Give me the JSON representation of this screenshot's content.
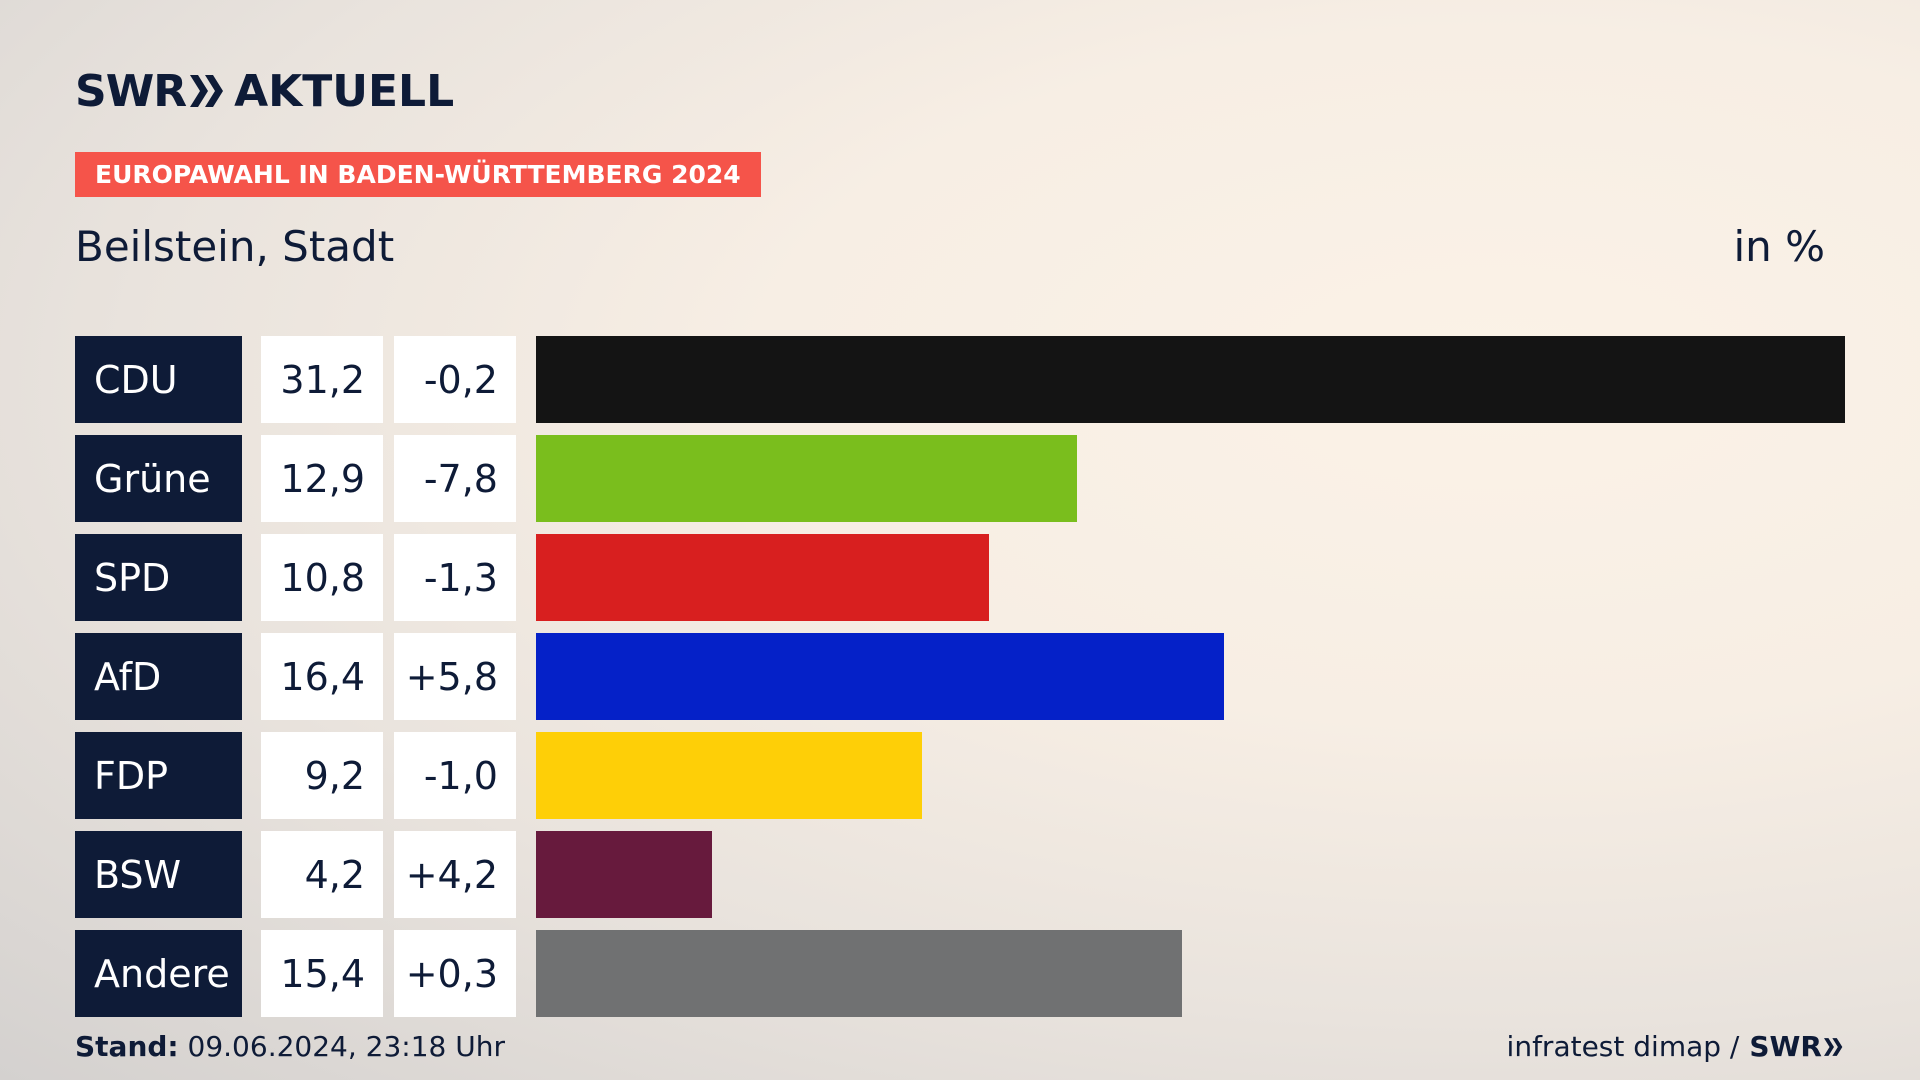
{
  "header": {
    "logo_brand": "SWR",
    "logo_product": "AKTUELL",
    "badge": "EUROPAWAHL IN BADEN-WÜRTTEMBERG 2024",
    "location": "Beilstein, Stadt",
    "unit": "in %"
  },
  "chart_data": {
    "type": "bar",
    "orientation": "horizontal",
    "title": "Beilstein, Stadt",
    "unit": "in %",
    "categories": [
      "CDU",
      "Grüne",
      "SPD",
      "AfD",
      "FDP",
      "BSW",
      "Andere"
    ],
    "values": [
      31.2,
      12.9,
      10.8,
      16.4,
      9.2,
      4.2,
      15.4
    ],
    "value_labels": [
      "31,2",
      "12,9",
      "10,8",
      "16,4",
      "9,2",
      "4,2",
      "15,4"
    ],
    "diff_labels": [
      "-0,2",
      "-7,8",
      "-1,3",
      "+5,8",
      "-1,0",
      "+4,2",
      "+0,3"
    ],
    "diffs": [
      -0.2,
      -7.8,
      -1.3,
      5.8,
      -1.0,
      4.2,
      0.3
    ],
    "colors": [
      "#141414",
      "#7abe1d",
      "#d81f1f",
      "#0521c8",
      "#fecf07",
      "#671a3d",
      "#707172"
    ],
    "xlim": [
      0,
      31.2
    ]
  },
  "footer": {
    "stand_label": "Stand:",
    "stand_value": "09.06.2024, 23:18 Uhr",
    "source": "infratest dimap /",
    "source_brand": "SWR"
  },
  "colors": {
    "navy": "#0e1b37",
    "badge": "#f5544a"
  }
}
